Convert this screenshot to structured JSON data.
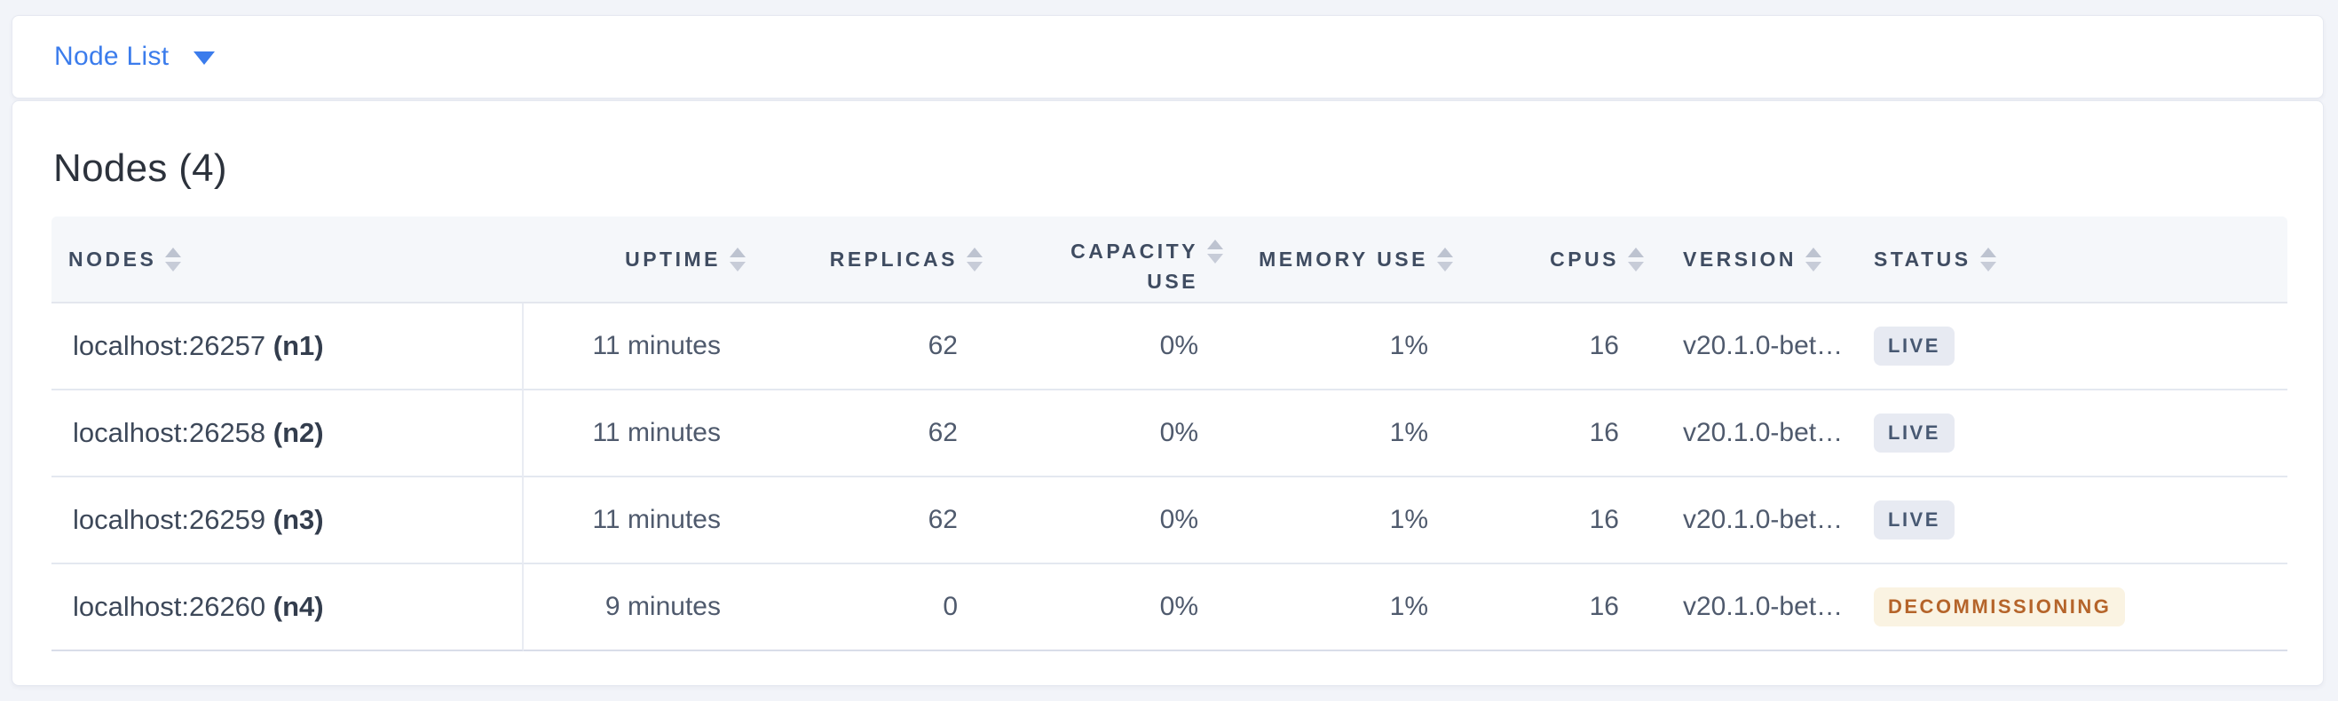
{
  "toolbar": {
    "view_selector": {
      "label": "Node List"
    }
  },
  "panel": {
    "title": "Nodes (4)",
    "table": {
      "columns": [
        {
          "key": "nodes",
          "label": "NODES",
          "sortable": true
        },
        {
          "key": "uptime",
          "label": "UPTIME",
          "sortable": true
        },
        {
          "key": "replicas",
          "label": "REPLICAS",
          "sortable": true
        },
        {
          "key": "capacity_use",
          "label": "CAPACITY USE",
          "sortable": true
        },
        {
          "key": "memory_use",
          "label": "MEMORY USE",
          "sortable": true
        },
        {
          "key": "cpus",
          "label": "CPUS",
          "sortable": true
        },
        {
          "key": "version",
          "label": "VERSION",
          "sortable": true
        },
        {
          "key": "status",
          "label": "STATUS",
          "sortable": true
        }
      ],
      "rows": [
        {
          "address": "localhost:26257",
          "node_id": "(n1)",
          "uptime": "11 minutes",
          "replicas": "62",
          "capacity_use": "0%",
          "memory_use": "1%",
          "cpus": "16",
          "version": "v20.1.0-bet…",
          "status": "LIVE"
        },
        {
          "address": "localhost:26258",
          "node_id": "(n2)",
          "uptime": "11 minutes",
          "replicas": "62",
          "capacity_use": "0%",
          "memory_use": "1%",
          "cpus": "16",
          "version": "v20.1.0-bet…",
          "status": "LIVE"
        },
        {
          "address": "localhost:26259",
          "node_id": "(n3)",
          "uptime": "11 minutes",
          "replicas": "62",
          "capacity_use": "0%",
          "memory_use": "1%",
          "cpus": "16",
          "version": "v20.1.0-bet…",
          "status": "LIVE"
        },
        {
          "address": "localhost:26260",
          "node_id": "(n4)",
          "uptime": "9 minutes",
          "replicas": "0",
          "capacity_use": "0%",
          "memory_use": "1%",
          "cpus": "16",
          "version": "v20.1.0-bet…",
          "status": "DECOMMISSIONING"
        }
      ]
    }
  },
  "colors": {
    "accent_blue": "#3b7cec",
    "live_badge_bg": "#e7eaf2",
    "live_badge_text": "#475872",
    "decommissioning_badge_bg": "#faf3e2",
    "decommissioning_badge_text": "#b5642a"
  }
}
